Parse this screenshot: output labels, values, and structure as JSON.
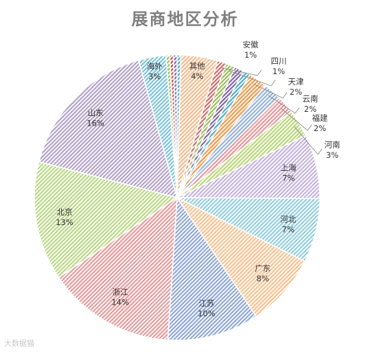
{
  "chart_data": {
    "type": "pie",
    "title": "展商地区分析",
    "start_category": "其他",
    "slices": [
      {
        "label": "其他",
        "value": 4,
        "display": "4%",
        "color": "#f5b98a"
      },
      {
        "label": "安徽",
        "value": 1,
        "display": "1%",
        "color": "#c96a6a"
      },
      {
        "label": "四川",
        "value": 1,
        "display": "1%",
        "color": "#9bbb59"
      },
      {
        "label": "",
        "value": 1,
        "display": "",
        "color": "#8064a2"
      },
      {
        "label": "",
        "value": 0.8,
        "display": "",
        "color": "#4bacc6"
      },
      {
        "label": "天津",
        "value": 2,
        "display": "2%",
        "color": "#f79646"
      },
      {
        "label": "云南",
        "value": 2,
        "display": "2%",
        "color": "#95b3d7"
      },
      {
        "label": "福建",
        "value": 2,
        "display": "2%",
        "color": "#e6969a"
      },
      {
        "label": "河南",
        "value": 3,
        "display": "3%",
        "color": "#b7d675"
      },
      {
        "label": "上海",
        "value": 7,
        "display": "7%",
        "color": "#c4b2dc"
      },
      {
        "label": "河北",
        "value": 7,
        "display": "7%",
        "color": "#93cddd"
      },
      {
        "label": "广东",
        "value": 8,
        "display": "8%",
        "color": "#f9c08e"
      },
      {
        "label": "江苏",
        "value": 10,
        "display": "10%",
        "color": "#8ea6d6"
      },
      {
        "label": "浙江",
        "value": 14,
        "display": "14%",
        "color": "#e6999b"
      },
      {
        "label": "北京",
        "value": 13,
        "display": "13%",
        "color": "#b9d784"
      },
      {
        "label": "山东",
        "value": 16,
        "display": "16%",
        "color": "#b3a2c7"
      },
      {
        "label": "海外",
        "value": 3,
        "display": "3%",
        "color": "#7dc3d9"
      },
      {
        "label": "",
        "value": 0.4,
        "display": "",
        "color": "#9bbb59"
      },
      {
        "label": "",
        "value": 0.4,
        "display": "",
        "color": "#c0504d"
      },
      {
        "label": "",
        "value": 0.4,
        "display": "",
        "color": "#8064a2"
      },
      {
        "label": "",
        "value": 0.4,
        "display": "",
        "color": "#4bacc6"
      }
    ],
    "legend": "none"
  },
  "watermark": "大数据猫"
}
